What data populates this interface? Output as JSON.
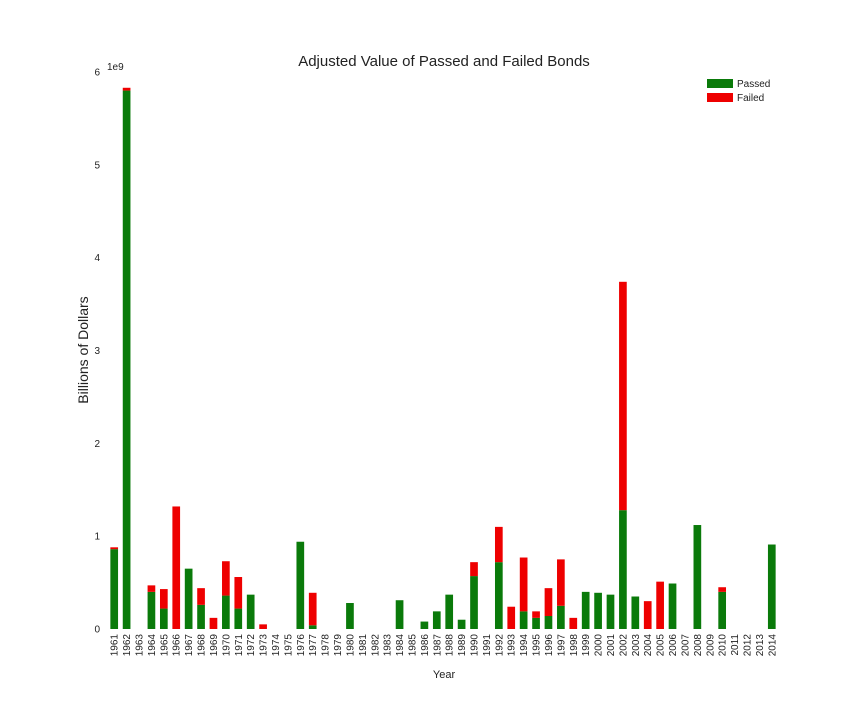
{
  "chart_data": {
    "type": "bar",
    "stacked": true,
    "title": "Adjusted Value of Passed and Failed Bonds",
    "xlabel": "Year",
    "ylabel": "Billions of Dollars",
    "y_offset_label": "1e9",
    "ylim": [
      0,
      6
    ],
    "yticks": [
      "0",
      "1",
      "2",
      "3",
      "4",
      "5",
      "6"
    ],
    "legend_position": "top-right",
    "grid": false,
    "categories": [
      "1961",
      "1962",
      "1963",
      "1964",
      "1965",
      "1966",
      "1967",
      "1968",
      "1969",
      "1970",
      "1971",
      "1972",
      "1973",
      "1974",
      "1975",
      "1976",
      "1977",
      "1978",
      "1979",
      "1980",
      "1981",
      "1982",
      "1983",
      "1984",
      "1985",
      "1986",
      "1987",
      "1988",
      "1989",
      "1990",
      "1991",
      "1992",
      "1993",
      "1994",
      "1995",
      "1996",
      "1997",
      "1998",
      "1999",
      "2000",
      "2001",
      "2002",
      "2003",
      "2004",
      "2005",
      "2006",
      "2007",
      "2008",
      "2009",
      "2010",
      "2011",
      "2012",
      "2013",
      "2014"
    ],
    "series": [
      {
        "name": "Passed",
        "color": "#0a7a0a",
        "values": [
          0.86,
          5.8,
          0,
          0.4,
          0.22,
          0,
          0.65,
          0.26,
          0,
          0.36,
          0.22,
          0.37,
          0,
          0,
          0,
          0.94,
          0.04,
          0,
          0,
          0.28,
          0,
          0,
          0,
          0.31,
          0,
          0.08,
          0.19,
          0.37,
          0.1,
          0.57,
          0,
          0.72,
          0,
          0.19,
          0.12,
          0.14,
          0.25,
          0,
          0.4,
          0.39,
          0.37,
          1.28,
          0.35,
          0,
          0,
          0.49,
          0,
          1.12,
          0,
          0.4,
          0,
          0,
          0,
          0.91
        ]
      },
      {
        "name": "Failed",
        "color": "#ee0000",
        "values": [
          0.02,
          0.03,
          0,
          0.07,
          0.21,
          1.32,
          0,
          0.18,
          0.12,
          0.37,
          0.34,
          0,
          0.05,
          0,
          0,
          0,
          0.35,
          0,
          0,
          0,
          0,
          0,
          0,
          0,
          0,
          0,
          0,
          0,
          0,
          0.15,
          0,
          0.38,
          0.24,
          0.58,
          0.07,
          0.3,
          0.5,
          0.12,
          0,
          0,
          0,
          2.46,
          0,
          0.3,
          0.51,
          0,
          0,
          0,
          0,
          0.05,
          0,
          0,
          0,
          0
        ]
      }
    ]
  }
}
